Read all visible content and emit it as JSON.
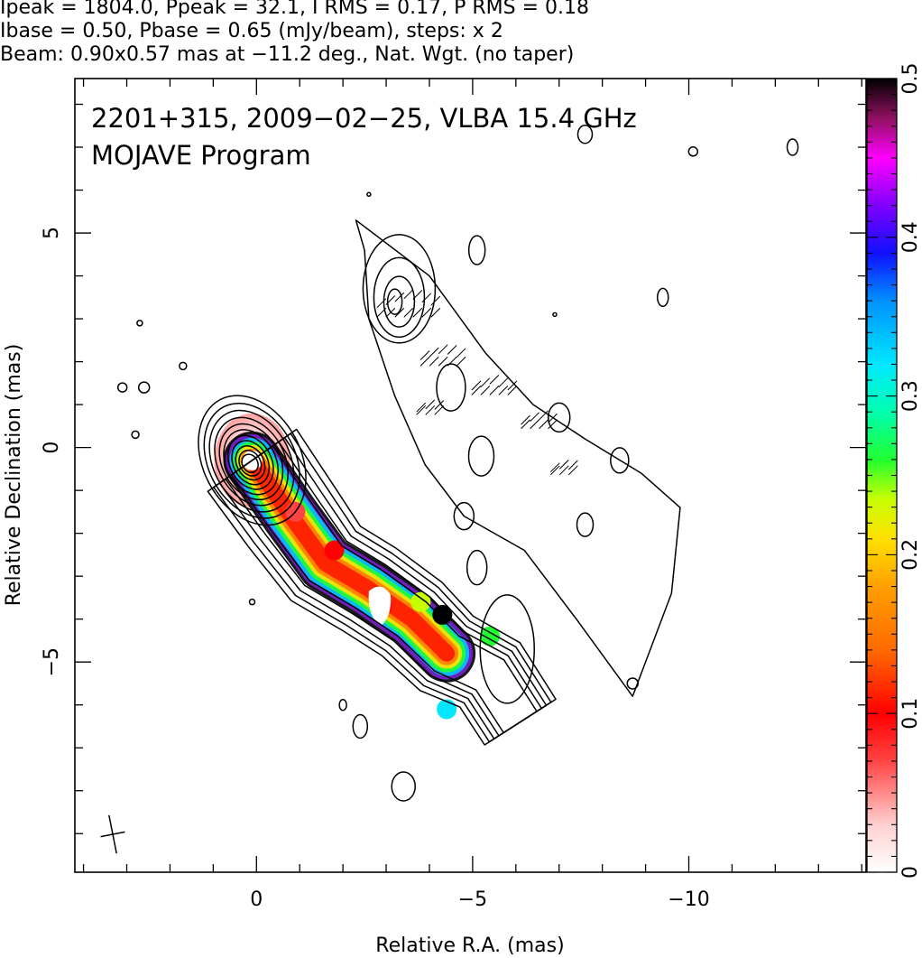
{
  "header": {
    "line1": "Ipeak = 1804.0, Ppeak = 32.1, I RMS = 0.17, P RMS = 0.18",
    "line2": "Ibase = 0.50, Pbase = 0.65 (mJy/beam), steps: x 2",
    "line3": "Beam: 0.90x0.57 mas at −11.2 deg., Nat. Wgt. (no taper)"
  },
  "chart_data": {
    "type": "heatmap",
    "title": "2201+315, 2009−02−25, VLBA 15.4 GHz",
    "subtitle": "MOJAVE Program",
    "xlabel": "Relative R.A. (mas)",
    "ylabel": "Relative Declination (mas)",
    "xlim": [
      4.2,
      -14.1
    ],
    "ylim": [
      -9.9,
      8.6
    ],
    "x_ticks": [
      0,
      -5,
      -10
    ],
    "x_tick_labels": [
      "0",
      "−5",
      "−10"
    ],
    "y_ticks": [
      5,
      0,
      -5
    ],
    "y_tick_labels": [
      "5",
      "0",
      "−5"
    ],
    "colorbar": {
      "range": [
        0,
        0.5
      ],
      "ticks": [
        0,
        0.1,
        0.2,
        0.3,
        0.4,
        0.5
      ],
      "tick_labels": [
        "0",
        "0.1",
        "0.2",
        "0.3",
        "0.4",
        "0.5"
      ]
    },
    "contour_levels_mJy_per_beam": [
      0.5,
      1,
      2,
      4,
      8,
      16,
      32,
      64,
      128,
      256,
      512,
      1024
    ],
    "stokes_I_peak_mJy_per_beam": 1804.0,
    "polarized_peak_mJy_per_beam": 32.1,
    "jet_ridge": [
      [
        0.1,
        -0.3
      ],
      [
        -0.8,
        -1.6
      ],
      [
        -1.6,
        -2.7
      ],
      [
        -2.6,
        -3.3
      ],
      [
        -3.6,
        -4.0
      ],
      [
        -4.4,
        -4.8
      ],
      [
        -5.4,
        -5.3
      ],
      [
        -6.1,
        -6.4
      ]
    ],
    "fractional_polarization_regions": [
      {
        "x": 0.1,
        "y": -0.3,
        "value": 0.02
      },
      {
        "x": -0.9,
        "y": -1.5,
        "value": 0.09
      },
      {
        "x": -1.8,
        "y": -2.4,
        "value": 0.12
      },
      {
        "x": -2.9,
        "y": -3.7,
        "value": 0.1
      },
      {
        "x": -3.8,
        "y": -3.6,
        "value": 0.25
      },
      {
        "x": -4.3,
        "y": -3.9,
        "value": 0.5
      },
      {
        "x": -5.4,
        "y": -4.4,
        "value": 0.27
      },
      {
        "x": -4.4,
        "y": -6.1,
        "value": 0.32
      }
    ],
    "beam": {
      "major_mas": 0.9,
      "minor_mas": 0.57,
      "pa_deg": -11.2
    }
  }
}
